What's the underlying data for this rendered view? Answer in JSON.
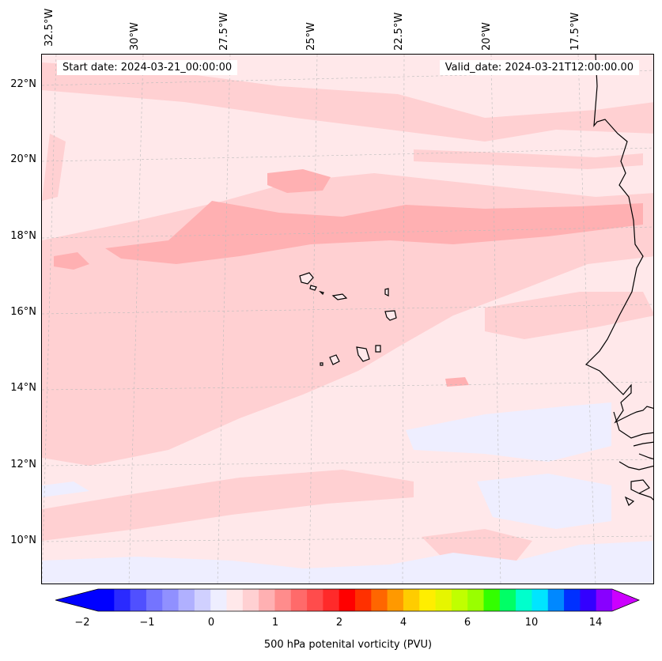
{
  "header": {
    "start_date": "Start date: 2024-03-21_00:00:00",
    "valid_date": "Valid_date: 2024-03-21T12:00:00.00"
  },
  "longitude_labels": [
    "32.5°W",
    "30°W",
    "27.5°W",
    "25°W",
    "22.5°W",
    "20°W",
    "17.5°W"
  ],
  "latitude_labels": [
    "22°N",
    "20°N",
    "18°N",
    "16°N",
    "14°N",
    "12°N",
    "10°N"
  ],
  "colorbar": {
    "label": "500 hPa potenital vorticity (PVU)",
    "tick_labels": [
      "−2",
      "−1",
      "0",
      "1",
      "2",
      "4",
      "6",
      "10",
      "14"
    ],
    "colors": [
      "#0000ff",
      "#2a2aff",
      "#5050ff",
      "#7474ff",
      "#9090ff",
      "#b0b0ff",
      "#d0d0ff",
      "#eeeeff",
      "#ffe8ea",
      "#ffd0d2",
      "#ffb0b2",
      "#ff8c8c",
      "#ff6a6a",
      "#ff4c4c",
      "#ff2a2a",
      "#ff0000",
      "#ff3000",
      "#ff6600",
      "#ff9900",
      "#ffcc00",
      "#ffee00",
      "#e6f500",
      "#c0ff00",
      "#99ff00",
      "#33ff00",
      "#00ff66",
      "#00ffcc",
      "#00e5ff",
      "#0088ff",
      "#0030ff",
      "#3300ff",
      "#8800ff"
    ],
    "extend_low_color": "#0000ff",
    "extend_high_color": "#cc00ff"
  },
  "map": {
    "background_color": "#ffe8ea",
    "band_color_light": "#ffd0d2",
    "band_color_mid": "#ffb0b2",
    "negative_color": "#eeeeff",
    "coastline_color": "#000000"
  }
}
